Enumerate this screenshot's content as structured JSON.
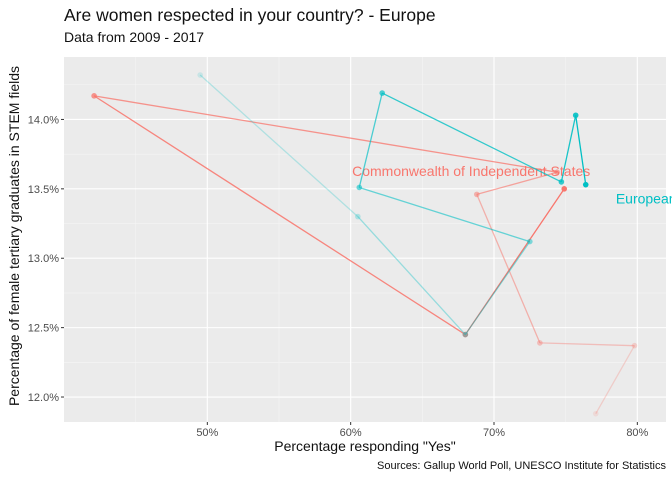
{
  "chart_data": {
    "type": "line",
    "title": "Are women respected in your country? - Europe",
    "subtitle": "Data from 2009 - 2017",
    "xlabel": "Percentage responding \"Yes\"",
    "ylabel": "Percentage of female tertiary graduates in STEM fields",
    "caption": "Sources: Gallup World Poll, UNESCO Institute for Statistics",
    "xlim": [
      0.4,
      0.82
    ],
    "ylim": [
      0.1182,
      0.1445
    ],
    "x_ticks": [
      0.5,
      0.6,
      0.7,
      0.8
    ],
    "x_tick_labels": [
      "50%",
      "60%",
      "70%",
      "80%"
    ],
    "y_ticks": [
      0.12,
      0.125,
      0.13,
      0.135,
      0.14
    ],
    "y_tick_labels": [
      "12.0%",
      "12.5%",
      "13.0%",
      "13.5%",
      "14.0%"
    ],
    "grid": true,
    "colors": {
      "Commonwealth of Independent States": "#F8766D",
      "European Union": "#00BFC4"
    },
    "series": [
      {
        "name": "Commonwealth of Independent States",
        "color": "#F8766D",
        "points": [
          {
            "x": 0.771,
            "y": 0.1188
          },
          {
            "x": 0.798,
            "y": 0.1237
          },
          {
            "x": 0.732,
            "y": 0.1239
          },
          {
            "x": 0.688,
            "y": 0.1346
          },
          {
            "x": 0.744,
            "y": 0.1362
          },
          {
            "x": 0.421,
            "y": 0.1417
          },
          {
            "x": 0.68,
            "y": 0.1245
          },
          {
            "x": 0.749,
            "y": 0.135
          }
        ],
        "label": {
          "text": "Commonwealth of Independent States",
          "x": 0.601,
          "y": 0.1363
        }
      },
      {
        "name": "European Union",
        "color": "#00BFC4",
        "points": [
          {
            "x": 0.495,
            "y": 0.1432
          },
          {
            "x": 0.605,
            "y": 0.133
          },
          {
            "x": 0.68,
            "y": 0.1245
          },
          {
            "x": 0.725,
            "y": 0.1312
          },
          {
            "x": 0.606,
            "y": 0.1351
          },
          {
            "x": 0.622,
            "y": 0.1419
          },
          {
            "x": 0.747,
            "y": 0.1355
          },
          {
            "x": 0.757,
            "y": 0.1403
          },
          {
            "x": 0.764,
            "y": 0.1353
          }
        ],
        "label": {
          "text": "European Union",
          "x": 0.785,
          "y": 0.1343
        }
      }
    ]
  }
}
